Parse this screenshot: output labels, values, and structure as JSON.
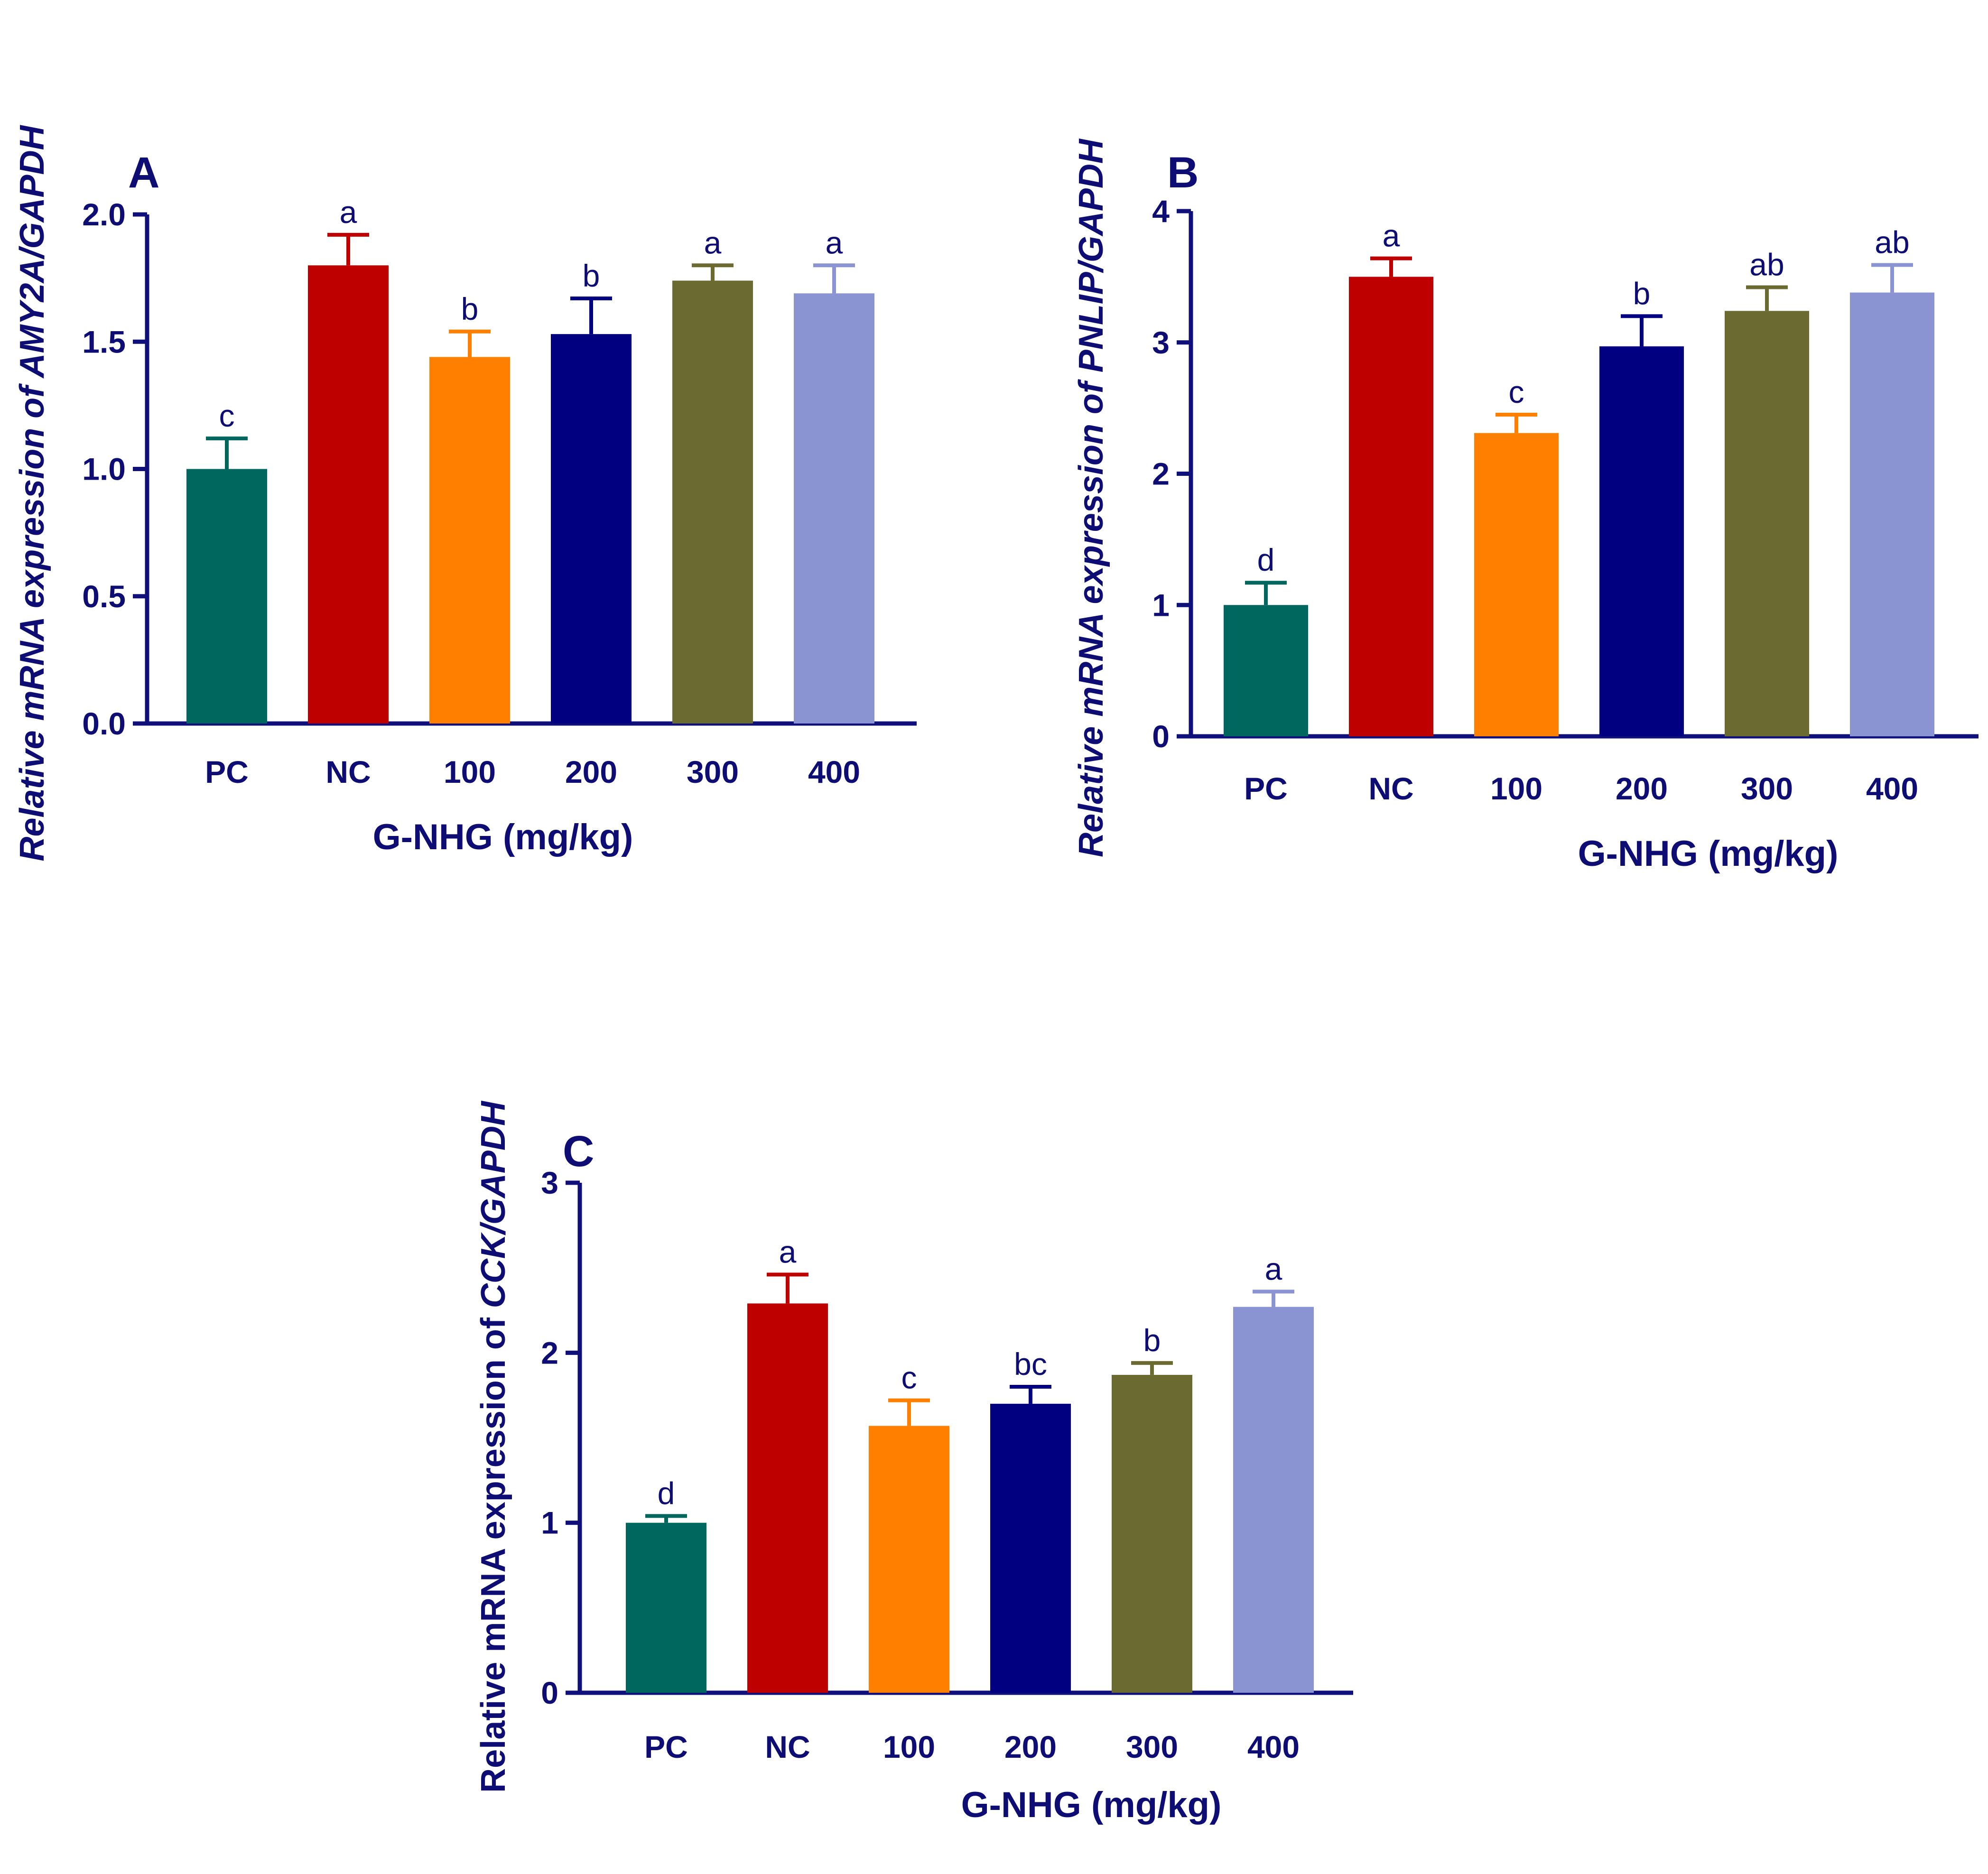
{
  "colors": {
    "axis": "#10107a",
    "text": "#0d0d73",
    "PC": "#00675e",
    "NC": "#bf0000",
    "100": "#ff8000",
    "200": "#000080",
    "300": "#6b6b31",
    "400": "#8b94d2"
  },
  "chart_data": [
    {
      "panel": "A",
      "type": "bar",
      "ylabel": "Relative mRNA expression of AMY2A/GAPDH",
      "ylabel_italic": true,
      "xlabel": "G-NHG (mg/kg)",
      "categories": [
        "PC",
        "NC",
        "100",
        "200",
        "300",
        "400"
      ],
      "values": [
        1.0,
        1.8,
        1.44,
        1.53,
        1.74,
        1.69
      ],
      "errors": [
        0.12,
        0.12,
        0.1,
        0.14,
        0.06,
        0.11
      ],
      "significance": [
        "c",
        "a",
        "b",
        "b",
        "a",
        "a"
      ],
      "ylim": [
        0,
        2.0
      ],
      "yticks": [
        "0.0",
        "0.5",
        "1.0",
        "1.5",
        "2.0"
      ],
      "grid": false
    },
    {
      "panel": "B",
      "type": "bar",
      "ylabel": "Relative mRNA expression of PNLIP/GAPDH",
      "ylabel_italic": true,
      "xlabel": "G-NHG (mg/kg)",
      "categories": [
        "PC",
        "NC",
        "100",
        "200",
        "300",
        "400"
      ],
      "values": [
        1.0,
        3.5,
        2.31,
        2.97,
        3.24,
        3.38
      ],
      "errors": [
        0.17,
        0.14,
        0.14,
        0.23,
        0.18,
        0.21
      ],
      "significance": [
        "d",
        "a",
        "c",
        "b",
        "ab",
        "ab"
      ],
      "ylim": [
        0,
        4
      ],
      "yticks": [
        "0",
        "1",
        "2",
        "3",
        "4"
      ],
      "grid": false
    },
    {
      "panel": "C",
      "type": "bar",
      "ylabel": "Relative mRNA expression of CCK/GAPDH",
      "ylabel_italic": false,
      "ylabel_gene_italic": "CCK/GAPDH",
      "xlabel": "G-NHG (mg/kg)",
      "categories": [
        "PC",
        "NC",
        "100",
        "200",
        "300",
        "400"
      ],
      "values": [
        1.0,
        2.29,
        1.57,
        1.7,
        1.87,
        2.27
      ],
      "errors": [
        0.04,
        0.17,
        0.15,
        0.1,
        0.07,
        0.09
      ],
      "significance": [
        "d",
        "a",
        "c",
        "bc",
        "b",
        "a"
      ],
      "ylim": [
        0,
        3
      ],
      "yticks": [
        "0",
        "1",
        "2",
        "3"
      ],
      "grid": false
    }
  ]
}
